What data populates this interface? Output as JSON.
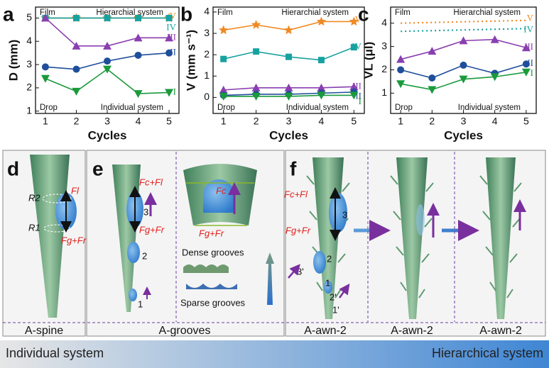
{
  "chart_data": [
    {
      "type": "line",
      "panel": "a",
      "ylabel": "D (mm)",
      "xlabel": "Cycles",
      "top_left": "Film",
      "top_right": "Hierarchial system",
      "bottom_left": "Drop",
      "bottom_right": "Individual system",
      "x": [
        1,
        2,
        3,
        4,
        5
      ],
      "xlim": [
        0.68,
        5.32
      ],
      "xticks": [
        1,
        2,
        3,
        4,
        5
      ],
      "ylim": [
        0.9,
        5.47
      ],
      "yticks": [
        1,
        2,
        3,
        4,
        5
      ],
      "series": [
        {
          "name": "V",
          "color": "#f08a24",
          "marker": "star",
          "linestyle": "solid",
          "values": [
            5,
            5,
            5,
            5,
            5
          ]
        },
        {
          "name": "IV",
          "color": "#17a2a0",
          "marker": "square",
          "linestyle": "solid",
          "values": [
            5,
            5,
            5,
            5,
            5
          ]
        },
        {
          "name": "III",
          "color": "#8a3fb0",
          "marker": "triangle-up",
          "linestyle": "solid",
          "values": [
            5,
            3.8,
            3.8,
            4.15,
            4.15
          ]
        },
        {
          "name": "II",
          "color": "#1f4e9a",
          "marker": "circle",
          "linestyle": "solid",
          "values": [
            2.9,
            2.8,
            3.15,
            3.4,
            3.5
          ]
        },
        {
          "name": "I",
          "color": "#1a9a3c",
          "marker": "triangle-down",
          "linestyle": "solid",
          "values": [
            2.4,
            1.85,
            2.8,
            1.75,
            1.8
          ]
        }
      ]
    },
    {
      "type": "line",
      "panel": "b",
      "ylabel": "V (mm s⁻¹)",
      "xlabel": "Cycles",
      "top_left": "Film",
      "top_right": "Hierarchial system",
      "bottom_left": "Drop",
      "bottom_right": "Individual system",
      "x": [
        1,
        2,
        3,
        4,
        5
      ],
      "xlim": [
        0.68,
        5.32
      ],
      "xticks": [
        1,
        2,
        3,
        4,
        5
      ],
      "ylim": [
        -0.75,
        4.23
      ],
      "yticks": [
        0,
        1,
        2,
        3,
        4
      ],
      "series": [
        {
          "name": "V",
          "color": "#f08a24",
          "marker": "star",
          "linestyle": "solid",
          "values": [
            3.15,
            3.4,
            3.15,
            3.55,
            3.55
          ]
        },
        {
          "name": "IV",
          "color": "#17a2a0",
          "marker": "square",
          "linestyle": "solid",
          "values": [
            1.8,
            2.15,
            1.9,
            1.75,
            2.35
          ]
        },
        {
          "name": "III",
          "color": "#8a3fb0",
          "marker": "triangle-up",
          "linestyle": "solid",
          "values": [
            0.35,
            0.45,
            0.45,
            0.45,
            0.5
          ]
        },
        {
          "name": "II",
          "color": "#1f4e9a",
          "marker": "circle",
          "linestyle": "solid",
          "values": [
            0.1,
            0.15,
            0.15,
            0.2,
            0.25
          ]
        },
        {
          "name": "I",
          "color": "#1a9a3c",
          "marker": "triangle-down",
          "linestyle": "solid",
          "values": [
            0.05,
            0.05,
            0.05,
            0.1,
            0.1
          ]
        }
      ]
    },
    {
      "type": "line",
      "panel": "c",
      "ylabel": "VL (μl)",
      "xlabel": "Cycles",
      "top_left": "Film",
      "top_right": "Hierarchial system",
      "bottom_left": "Drop",
      "bottom_right": "Individual system",
      "x": [
        1,
        2,
        3,
        4,
        5
      ],
      "xlim": [
        0.68,
        5.32
      ],
      "xticks": [
        1,
        2,
        3,
        4,
        5
      ],
      "ylim": [
        0.13,
        4.69
      ],
      "yticks": [
        1,
        2,
        3,
        4
      ],
      "series": [
        {
          "name": "V",
          "color": "#f08a24",
          "marker": "none",
          "linestyle": "dotted",
          "values": [
            4.0,
            4.03,
            4.06,
            4.09,
            4.12
          ]
        },
        {
          "name": "IV",
          "color": "#17a2a0",
          "marker": "none",
          "linestyle": "dotted",
          "values": [
            3.65,
            3.68,
            3.71,
            3.74,
            3.77
          ]
        },
        {
          "name": "III",
          "color": "#8a3fb0",
          "marker": "triangle-up",
          "linestyle": "solid",
          "values": [
            2.45,
            2.8,
            3.25,
            3.3,
            2.95
          ]
        },
        {
          "name": "II",
          "color": "#1f4e9a",
          "marker": "circle",
          "linestyle": "solid",
          "values": [
            2.0,
            1.65,
            2.2,
            1.85,
            2.25
          ]
        },
        {
          "name": "I",
          "color": "#1a9a3c",
          "marker": "triangle-down",
          "linestyle": "solid",
          "values": [
            1.4,
            1.15,
            1.6,
            1.7,
            1.9
          ]
        }
      ]
    }
  ],
  "panels": {
    "d": {
      "letter": "d",
      "f1": "Fl",
      "r2": "R2",
      "r1": "R1",
      "fg": "Fg+Fr",
      "caption": "A-spine"
    },
    "e": {
      "letter": "e",
      "fc": "Fc+Fl",
      "fg": "Fg+Fr",
      "n3": "3",
      "n2": "2",
      "n1": "1",
      "inset_fc": "Fc",
      "inset_fg": "Fg+Fr",
      "dense": "Dense grooves",
      "sparse": "Sparse grooves",
      "caption": "A-grooves"
    },
    "f": {
      "letter": "f",
      "fc": "Fc+Fl",
      "fg": "Fg+Fr",
      "n3": "3",
      "n2": "2",
      "n1": "1",
      "n3p": "3'",
      "n2p": "2'",
      "n1p": "1'",
      "captions": [
        "A-awn-2",
        "A-awn-2",
        "A-awn-2"
      ]
    }
  },
  "banner": {
    "left": "Individual system",
    "right": "Hierarchical system"
  }
}
